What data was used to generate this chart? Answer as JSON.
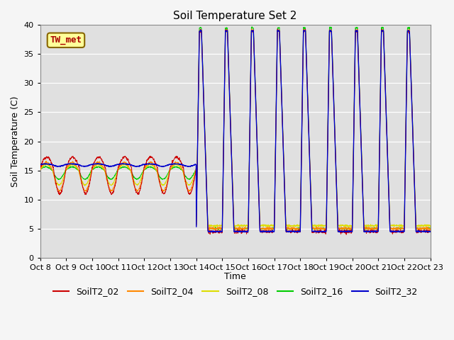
{
  "title": "Soil Temperature Set 2",
  "ylabel": "Soil Temperature (C)",
  "xlabel": "Time",
  "ylim": [
    0,
    40
  ],
  "yticks": [
    0,
    5,
    10,
    15,
    20,
    25,
    30,
    35,
    40
  ],
  "xtick_labels": [
    "Oct 8",
    "Oct 9",
    "Oct 10",
    "Oct 11",
    "Oct 12",
    "Oct 13",
    "Oct 14",
    "Oct 15",
    "Oct 16",
    "Oct 17",
    "Oct 18",
    "Oct 19",
    "Oct 20",
    "Oct 21",
    "Oct 22",
    "Oct 23"
  ],
  "annotation_text": "TW_met",
  "colors": {
    "SoilT2_02": "#cc0000",
    "SoilT2_04": "#ff8800",
    "SoilT2_08": "#dddd00",
    "SoilT2_16": "#00cc00",
    "SoilT2_32": "#0000cc"
  },
  "background_color": "#e0e0e0",
  "title_fontsize": 11,
  "axis_fontsize": 9,
  "tick_fontsize": 8,
  "legend_fontsize": 9,
  "linewidth_thin": 0.7,
  "linewidth_blue": 1.0
}
